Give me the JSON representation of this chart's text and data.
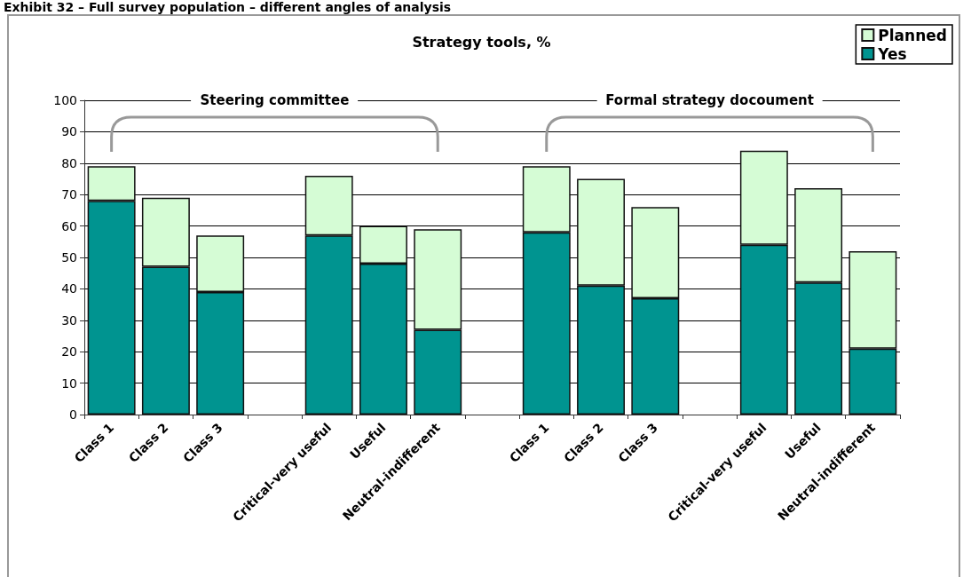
{
  "chart_data": {
    "type": "bar",
    "title": "Strategy tools, %",
    "categories": [
      "Class 1",
      "Class 2",
      "Class 3",
      null,
      "Critical-very useful",
      "Useful",
      "Neutral-indifferent",
      null,
      "Class 1",
      "Class 2",
      "Class 3",
      null,
      "Critical-very useful",
      "Useful",
      "Neutral-indifferent"
    ],
    "series": [
      {
        "name": "Yes",
        "color": "#009490",
        "values": [
          68,
          47,
          39,
          null,
          57,
          48,
          27,
          null,
          58,
          41,
          37,
          null,
          54,
          42,
          21
        ]
      },
      {
        "name": "Planned",
        "color": "#d5fcd5",
        "values": [
          11,
          22,
          18,
          null,
          19,
          12,
          32,
          null,
          21,
          34,
          29,
          null,
          30,
          30,
          31
        ]
      }
    ],
    "stacked": true,
    "ylim": [
      0,
      100
    ],
    "yticks": [
      0,
      10,
      20,
      30,
      40,
      50,
      60,
      70,
      80,
      90,
      100
    ],
    "grid": "y",
    "legend": "top right",
    "annotations": [
      "Exhibit 32 – Full survey population – different angles of analysis",
      "Steering committee",
      "Formal strategy docoument"
    ]
  }
}
